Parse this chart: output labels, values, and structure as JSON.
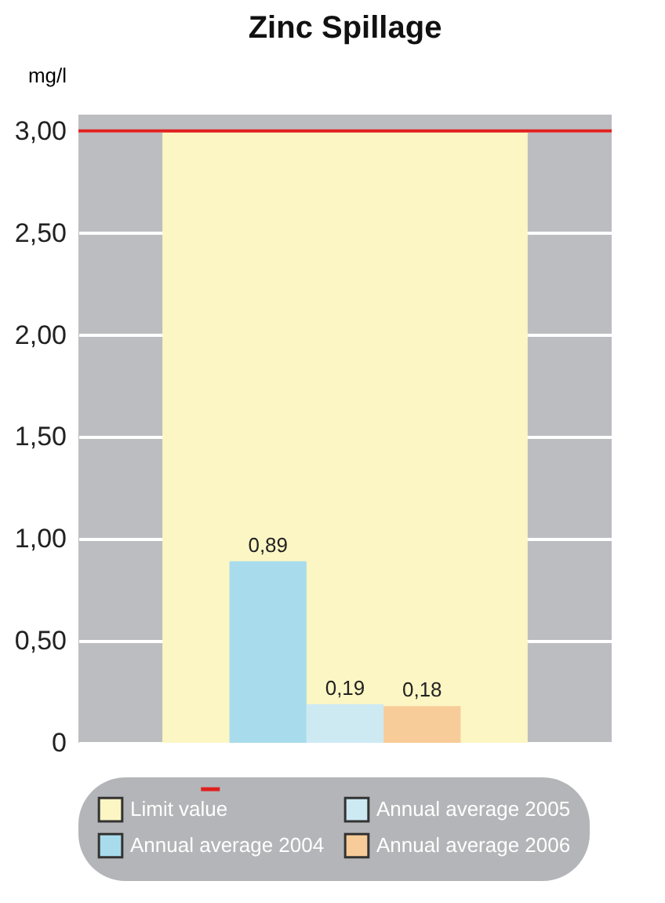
{
  "chart_data": {
    "type": "bar",
    "title": "Zinc Spillage",
    "ylabel": "mg/l",
    "categories": [
      null
    ],
    "series": [
      {
        "name": "Annual average 2004",
        "color": "#a8dcec",
        "values": [
          0.89
        ],
        "value_labels": [
          "0,89"
        ]
      },
      {
        "name": "Annual average 2005",
        "color": "#cdeaf3",
        "values": [
          0.19
        ],
        "value_labels": [
          "0,19"
        ]
      },
      {
        "name": "Annual average 2006",
        "color": "#f8cc98",
        "values": [
          0.18
        ],
        "value_labels": [
          "0,18"
        ]
      }
    ],
    "ylim": [
      0,
      3.08
    ],
    "yticks": [
      0,
      {
        "value": 0.5,
        "label": "0,50"
      },
      {
        "value": 1,
        "label": "1,00"
      },
      {
        "value": 1.5,
        "label": "1,50"
      },
      {
        "value": 2,
        "label": "2,00"
      },
      {
        "value": 2.5,
        "label": "2,50"
      },
      {
        "value": 3,
        "label": "3,00"
      }
    ],
    "bands": [
      {
        "axis": "y",
        "from": 0,
        "to": 3,
        "label": "Limit value",
        "color": "#fcf6c4"
      }
    ],
    "ref_lines": [
      {
        "axis": "y",
        "value": 3,
        "color": "#e02020"
      }
    ],
    "grid": "y",
    "legend": "bottom"
  }
}
